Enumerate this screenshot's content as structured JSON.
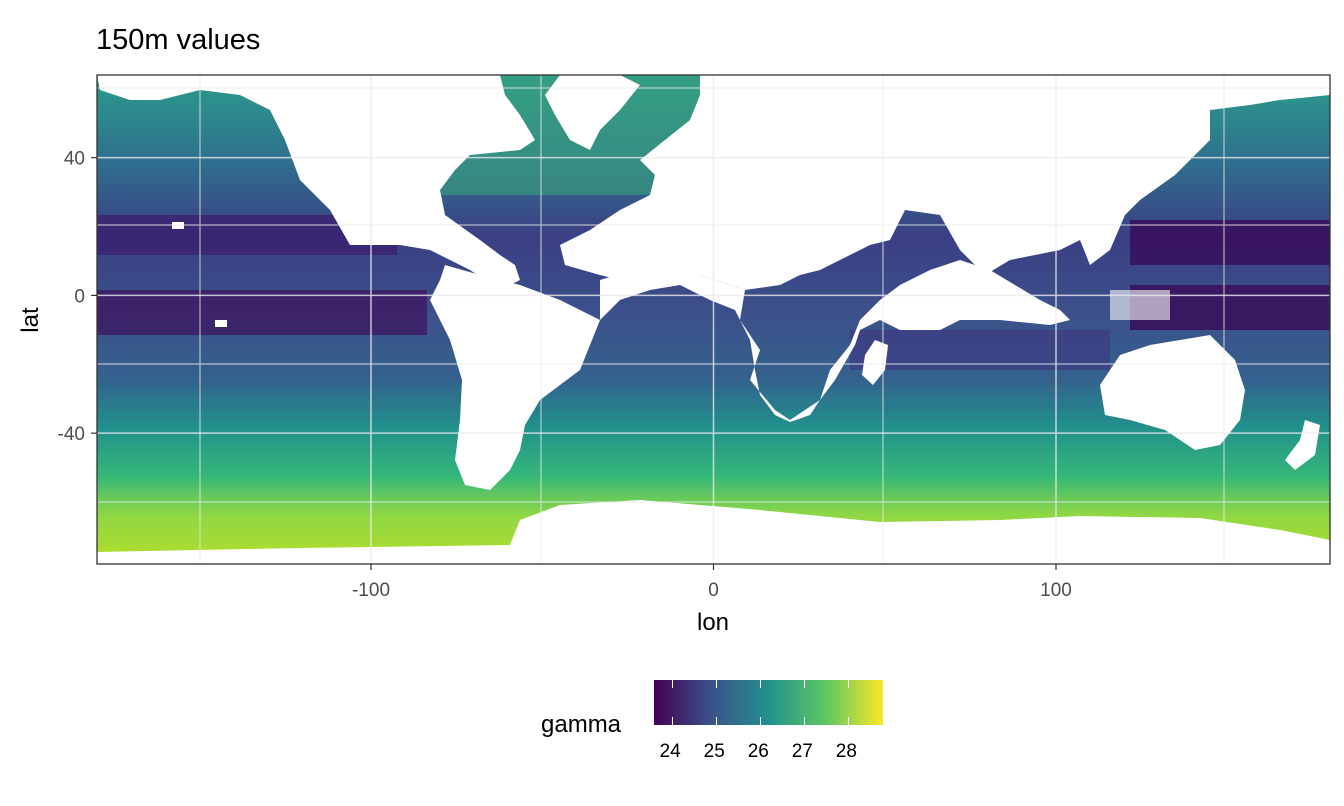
{
  "chart_data": {
    "type": "heatmap",
    "title": "150m values",
    "xlabel": "lon",
    "ylabel": "lat",
    "xlim": [
      -180,
      180
    ],
    "ylim": [
      -78,
      64
    ],
    "x_ticks": [
      "-100",
      "0",
      "100"
    ],
    "x_tick_values": [
      -100,
      0,
      100
    ],
    "y_ticks": [
      "40",
      "0",
      "-40"
    ],
    "y_tick_values": [
      40,
      0,
      -40
    ],
    "grid": true,
    "legend": {
      "title": "gamma",
      "position": "bottom",
      "labels": [
        "24",
        "25",
        "26",
        "27",
        "28"
      ],
      "values": [
        24,
        25,
        26,
        27,
        28
      ],
      "range": [
        23.6,
        28.8
      ],
      "colors": [
        "#440154",
        "#3b528b",
        "#21908c",
        "#5dc863",
        "#fde725"
      ]
    },
    "field_description": "gamma at 150m depth over ocean cells; low values (~24) in tropical/subtropical gyres, high values (~28) in Southern Ocean near Antarctica; land masked white"
  }
}
